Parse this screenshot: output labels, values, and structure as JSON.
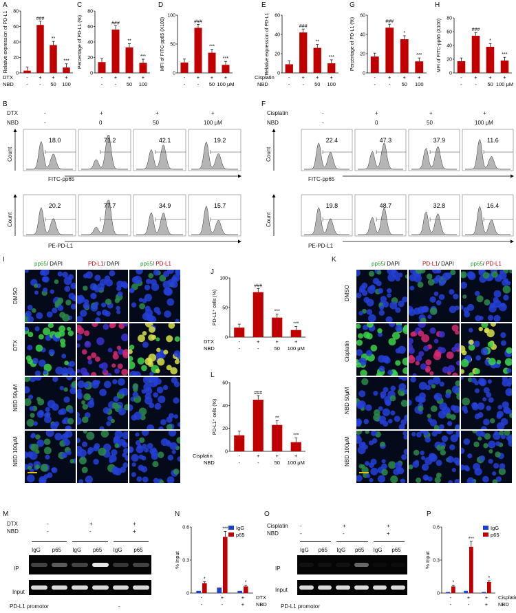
{
  "panel_letters": [
    "A",
    "B",
    "C",
    "D",
    "E",
    "F",
    "G",
    "H",
    "I",
    "J",
    "K",
    "L",
    "M",
    "N",
    "O",
    "P"
  ],
  "colors": {
    "bar_red": "#c00000",
    "bar_blue": "#1f3fcf",
    "green": "#2a9d2a",
    "red_text": "#c00000"
  },
  "treat": {
    "dtx": "DTX",
    "cisplatin": "Cisplatin",
    "nbd": "NBD",
    "minus": "-",
    "plus": "+",
    "fifty": "50",
    "hundred": "100",
    "hundred_um": "100 μM",
    "zero": "0"
  },
  "bar_panels": {
    "A": {
      "ylabel": "Relative expression of PD-L1",
      "ylim": [
        0,
        80
      ],
      "ticks": [
        "0",
        "20",
        "40",
        "60",
        "80"
      ],
      "values": [
        3,
        62,
        36,
        7
      ],
      "sig": [
        "",
        "###",
        "**",
        "***"
      ]
    },
    "C": {
      "ylabel": "Percentage of PD-L1 (%)",
      "ylim": [
        0,
        80
      ],
      "ticks": [
        "0",
        "20",
        "40",
        "60",
        "80"
      ],
      "values": [
        14,
        56,
        33,
        13
      ],
      "sig": [
        "",
        "###",
        "**",
        "***"
      ]
    },
    "D": {
      "ylabel": "MFI of FITC-pp65 (X100)",
      "ylim": [
        0,
        100
      ],
      "ticks": [
        "0",
        "50",
        "100"
      ],
      "values": [
        18,
        78,
        35,
        14
      ],
      "sig": [
        "",
        "###",
        "***",
        "***"
      ]
    },
    "E": {
      "ylabel": "Relative expression of PD-L1",
      "ylim": [
        0,
        60
      ],
      "ticks": [
        "0",
        "20",
        "40",
        "60"
      ],
      "values": [
        9,
        42,
        26,
        10
      ],
      "sig": [
        "",
        "###",
        "**",
        "***"
      ]
    },
    "G": {
      "ylabel": "Percentage of PD-L1 (%)",
      "ylim": [
        0,
        60
      ],
      "ticks": [
        "0",
        "20",
        "40",
        "60"
      ],
      "values": [
        17,
        47,
        35,
        12
      ],
      "sig": [
        "",
        "###",
        "*",
        "***"
      ]
    },
    "H": {
      "ylabel": "MFI of FITC-pp65 (X100)",
      "ylim": [
        0,
        80
      ],
      "ticks": [
        "0",
        "20",
        "40",
        "60",
        "80"
      ],
      "values": [
        17,
        54,
        38,
        18
      ],
      "sig": [
        "",
        "###",
        "*",
        "***"
      ]
    },
    "J": {
      "ylabel": "PD-L1⁺ cells (%)",
      "ylim": [
        0,
        100
      ],
      "ticks": [
        "0",
        "50",
        "100"
      ],
      "values": [
        16,
        76,
        33,
        12
      ],
      "sig": [
        "",
        "###",
        "***",
        "***"
      ]
    },
    "L": {
      "ylabel": "PD-L1⁺ cells (%)",
      "ylim": [
        0,
        60
      ],
      "ticks": [
        "0",
        "20",
        "40",
        "60"
      ],
      "values": [
        14,
        45,
        23,
        8
      ],
      "sig": [
        "",
        "###",
        "**",
        "***"
      ]
    }
  },
  "chip_panels": {
    "N": {
      "ylabel": "% Input",
      "ylim": [
        0,
        0.6
      ],
      "ticks": [
        "0",
        "0.3",
        "0.6"
      ],
      "igg": [
        0.02,
        0.05,
        0.02
      ],
      "p65": [
        0.09,
        0.51,
        0.06
      ],
      "sig": [
        "*",
        "***",
        "*"
      ],
      "legend": [
        "IgG",
        "p65"
      ]
    },
    "P": {
      "ylabel": "% Input",
      "ylim": [
        0,
        0.6
      ],
      "ticks": [
        "0",
        "0.3",
        "0.6"
      ],
      "igg": [
        0.01,
        0.02,
        0.01
      ],
      "p65": [
        0.06,
        0.42,
        0.1
      ],
      "sig": [
        "*",
        "***",
        "*"
      ],
      "legend": [
        "IgG",
        "p65"
      ]
    }
  },
  "flow": {
    "B": {
      "pp65": [
        "18.0",
        "71.2",
        "42.1",
        "19.2"
      ],
      "pdl1": [
        "20.2",
        "77.7",
        "34.9",
        "15.7"
      ],
      "x_pp65": "FITC-pp65",
      "x_pdl1": "PE-PD-L1",
      "y": "Count"
    },
    "F": {
      "pp65": [
        "22.4",
        "47.3",
        "37.9",
        "11.6"
      ],
      "pdl1": [
        "19.8",
        "48.7",
        "32.8",
        "16.4"
      ],
      "x_pp65": "FITC-pp65",
      "x_pdl1": "PE-PD-L1",
      "y": "Count"
    }
  },
  "micro": {
    "col1a": "pp65",
    "col1b": "/ DAPI",
    "col2a": "PD-L1",
    "col2b": "/ DAPI",
    "col3a": "pp65",
    "col3b": "/ ",
    "col3c": "PD-L1",
    "rows_I": [
      "DMSO",
      "DTX",
      "NBD 50μM",
      "NBD 100μM"
    ],
    "rows_K": [
      "DMSO",
      "Cisplatin",
      "NBD 50μM",
      "NBD 100μM"
    ]
  },
  "gel": {
    "igg": "IgG",
    "p65": "p65",
    "ip": "IP",
    "input": "Input",
    "promoter": "PD-L1 promotor"
  }
}
